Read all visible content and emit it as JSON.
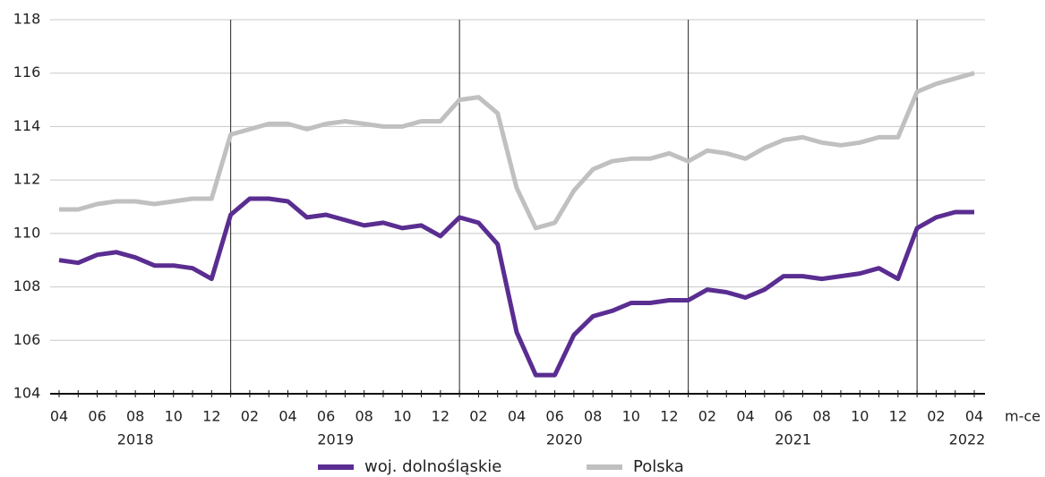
{
  "chart_data": {
    "type": "line",
    "x_label": "m-ce",
    "categories": [
      "04",
      null,
      "06",
      null,
      "08",
      null,
      "10",
      null,
      "12",
      null,
      "02",
      null,
      "04",
      null,
      "06",
      null,
      "08",
      null,
      "10",
      null,
      "12",
      null,
      "02",
      null,
      "04",
      null,
      "06",
      null,
      "08",
      null,
      "10",
      null,
      "12",
      null,
      "02",
      null,
      "04",
      null,
      "06",
      null,
      "08",
      null,
      "10",
      null,
      "12",
      null,
      "02",
      null,
      "04"
    ],
    "years": [
      "2018",
      "2019",
      "2020",
      "2021",
      "2022"
    ],
    "series": [
      {
        "name": "woj. dolnośląskie",
        "color": "#5a2d91",
        "values": [
          109.0,
          108.9,
          109.2,
          109.3,
          109.1,
          108.8,
          108.8,
          108.7,
          108.3,
          110.7,
          111.3,
          111.3,
          111.2,
          110.6,
          110.7,
          110.5,
          110.3,
          110.4,
          110.2,
          110.3,
          109.9,
          110.6,
          110.4,
          109.6,
          106.3,
          104.7,
          104.7,
          106.2,
          106.9,
          107.1,
          107.4,
          107.4,
          107.5,
          107.5,
          107.9,
          107.8,
          107.6,
          107.9,
          108.4,
          108.4,
          108.3,
          108.4,
          108.5,
          108.7,
          108.3,
          110.2,
          110.6,
          110.8,
          110.8
        ]
      },
      {
        "name": "Polska",
        "color": "#c0c0c0",
        "values": [
          110.9,
          110.9,
          111.1,
          111.2,
          111.2,
          111.1,
          111.2,
          111.3,
          111.3,
          113.7,
          113.9,
          114.1,
          114.1,
          113.9,
          114.1,
          114.2,
          114.1,
          114.0,
          114.0,
          114.2,
          114.2,
          115.0,
          115.1,
          114.5,
          111.7,
          110.2,
          110.4,
          111.6,
          112.4,
          112.7,
          112.8,
          112.8,
          113.0,
          112.7,
          113.1,
          113.0,
          112.8,
          113.2,
          113.5,
          113.6,
          113.4,
          113.3,
          113.4,
          113.6,
          113.6,
          115.3,
          115.6,
          115.8,
          116.0
        ]
      }
    ],
    "ylim": [
      104,
      118
    ],
    "yticks": [
      104,
      106,
      108,
      110,
      112,
      114,
      116,
      118
    ],
    "grid": true
  }
}
